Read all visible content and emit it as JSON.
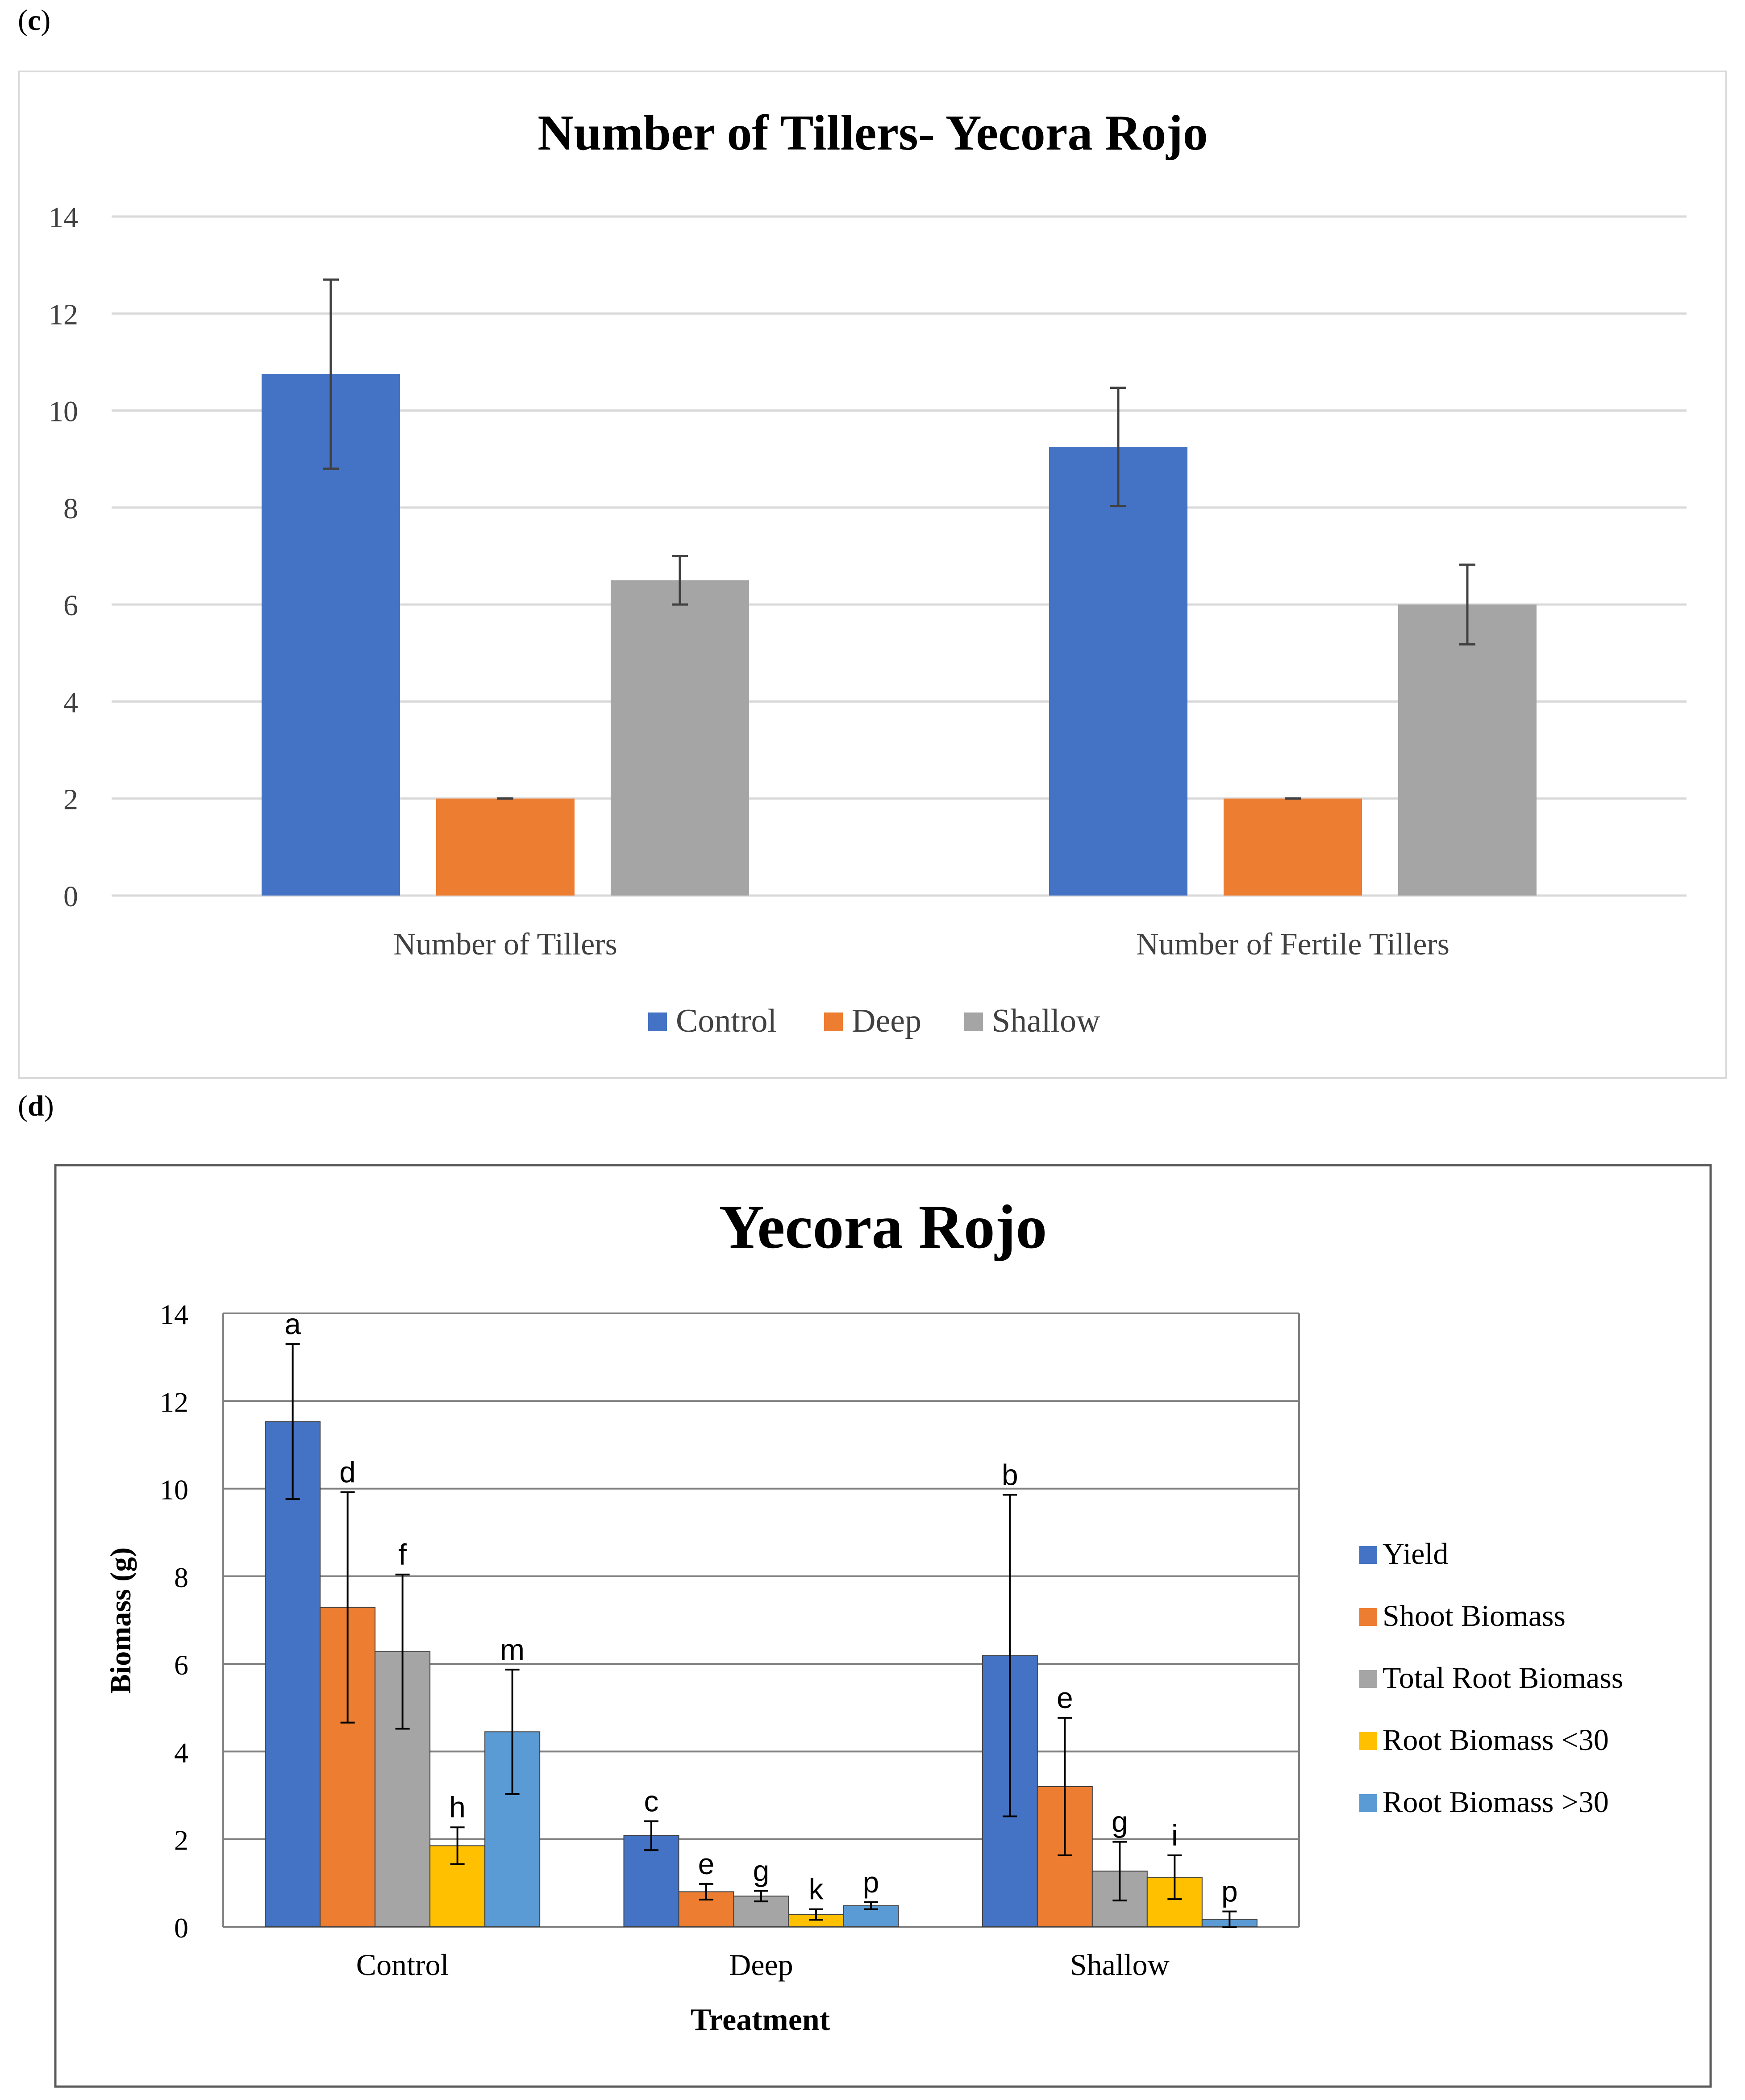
{
  "panels": {
    "c_label": "c",
    "d_label": "d"
  },
  "chart_data": [
    {
      "id": "c",
      "type": "bar",
      "title": "Number of Tillers- Yecora Rojo",
      "xlabel": "",
      "ylabel": "",
      "ylim": [
        0,
        14
      ],
      "yticks": [
        0,
        2,
        4,
        6,
        8,
        10,
        12,
        14
      ],
      "grid": true,
      "legend_position": "bottom",
      "categories": [
        "Number of Tillers",
        "Number of Fertile Tillers"
      ],
      "series": [
        {
          "name": "Control",
          "color": "#4472C4",
          "values": [
            10.75,
            9.25
          ],
          "errors": [
            1.95,
            1.22
          ]
        },
        {
          "name": "Deep",
          "color": "#ED7D31",
          "values": [
            2.0,
            2.0
          ],
          "errors": [
            0,
            0
          ]
        },
        {
          "name": "Shallow",
          "color": "#A5A5A5",
          "values": [
            6.5,
            6.0
          ],
          "errors": [
            0.5,
            0.82
          ]
        }
      ]
    },
    {
      "id": "d",
      "type": "bar",
      "title": "Yecora Rojo",
      "xlabel": "Treatment",
      "ylabel": "Biomass (g)",
      "ylim": [
        0,
        14
      ],
      "yticks": [
        0,
        2,
        4,
        6,
        8,
        10,
        12,
        14
      ],
      "grid": true,
      "legend_position": "right",
      "categories": [
        "Control",
        "Deep",
        "Shallow"
      ],
      "series": [
        {
          "name": "Yield",
          "color": "#4472C4",
          "values": [
            11.53,
            2.08,
            6.19
          ],
          "errors": [
            1.77,
            0.33,
            3.67
          ],
          "letters": [
            "a",
            "c",
            "b"
          ]
        },
        {
          "name": "Shoot Biomass",
          "color": "#ED7D31",
          "values": [
            7.29,
            0.8,
            3.2
          ],
          "errors": [
            2.63,
            0.18,
            1.57
          ],
          "letters": [
            "d",
            "e",
            "e"
          ]
        },
        {
          "name": "Total Root Biomass",
          "color": "#A5A5A5",
          "values": [
            6.28,
            0.7,
            1.27
          ],
          "errors": [
            1.76,
            0.12,
            0.67
          ],
          "letters": [
            "f",
            "g",
            "g"
          ]
        },
        {
          "name": "Root Biomass <30",
          "color": "#FFC000",
          "values": [
            1.85,
            0.28,
            1.13
          ],
          "errors": [
            0.42,
            0.12,
            0.5
          ],
          "letters": [
            "h",
            "k",
            "i"
          ]
        },
        {
          "name": "Root Biomass >30",
          "color": "#5B9BD5",
          "values": [
            4.45,
            0.48,
            0.17
          ],
          "errors": [
            1.42,
            0.08,
            0.18
          ],
          "letters": [
            "m",
            "p",
            "p"
          ]
        }
      ]
    }
  ]
}
